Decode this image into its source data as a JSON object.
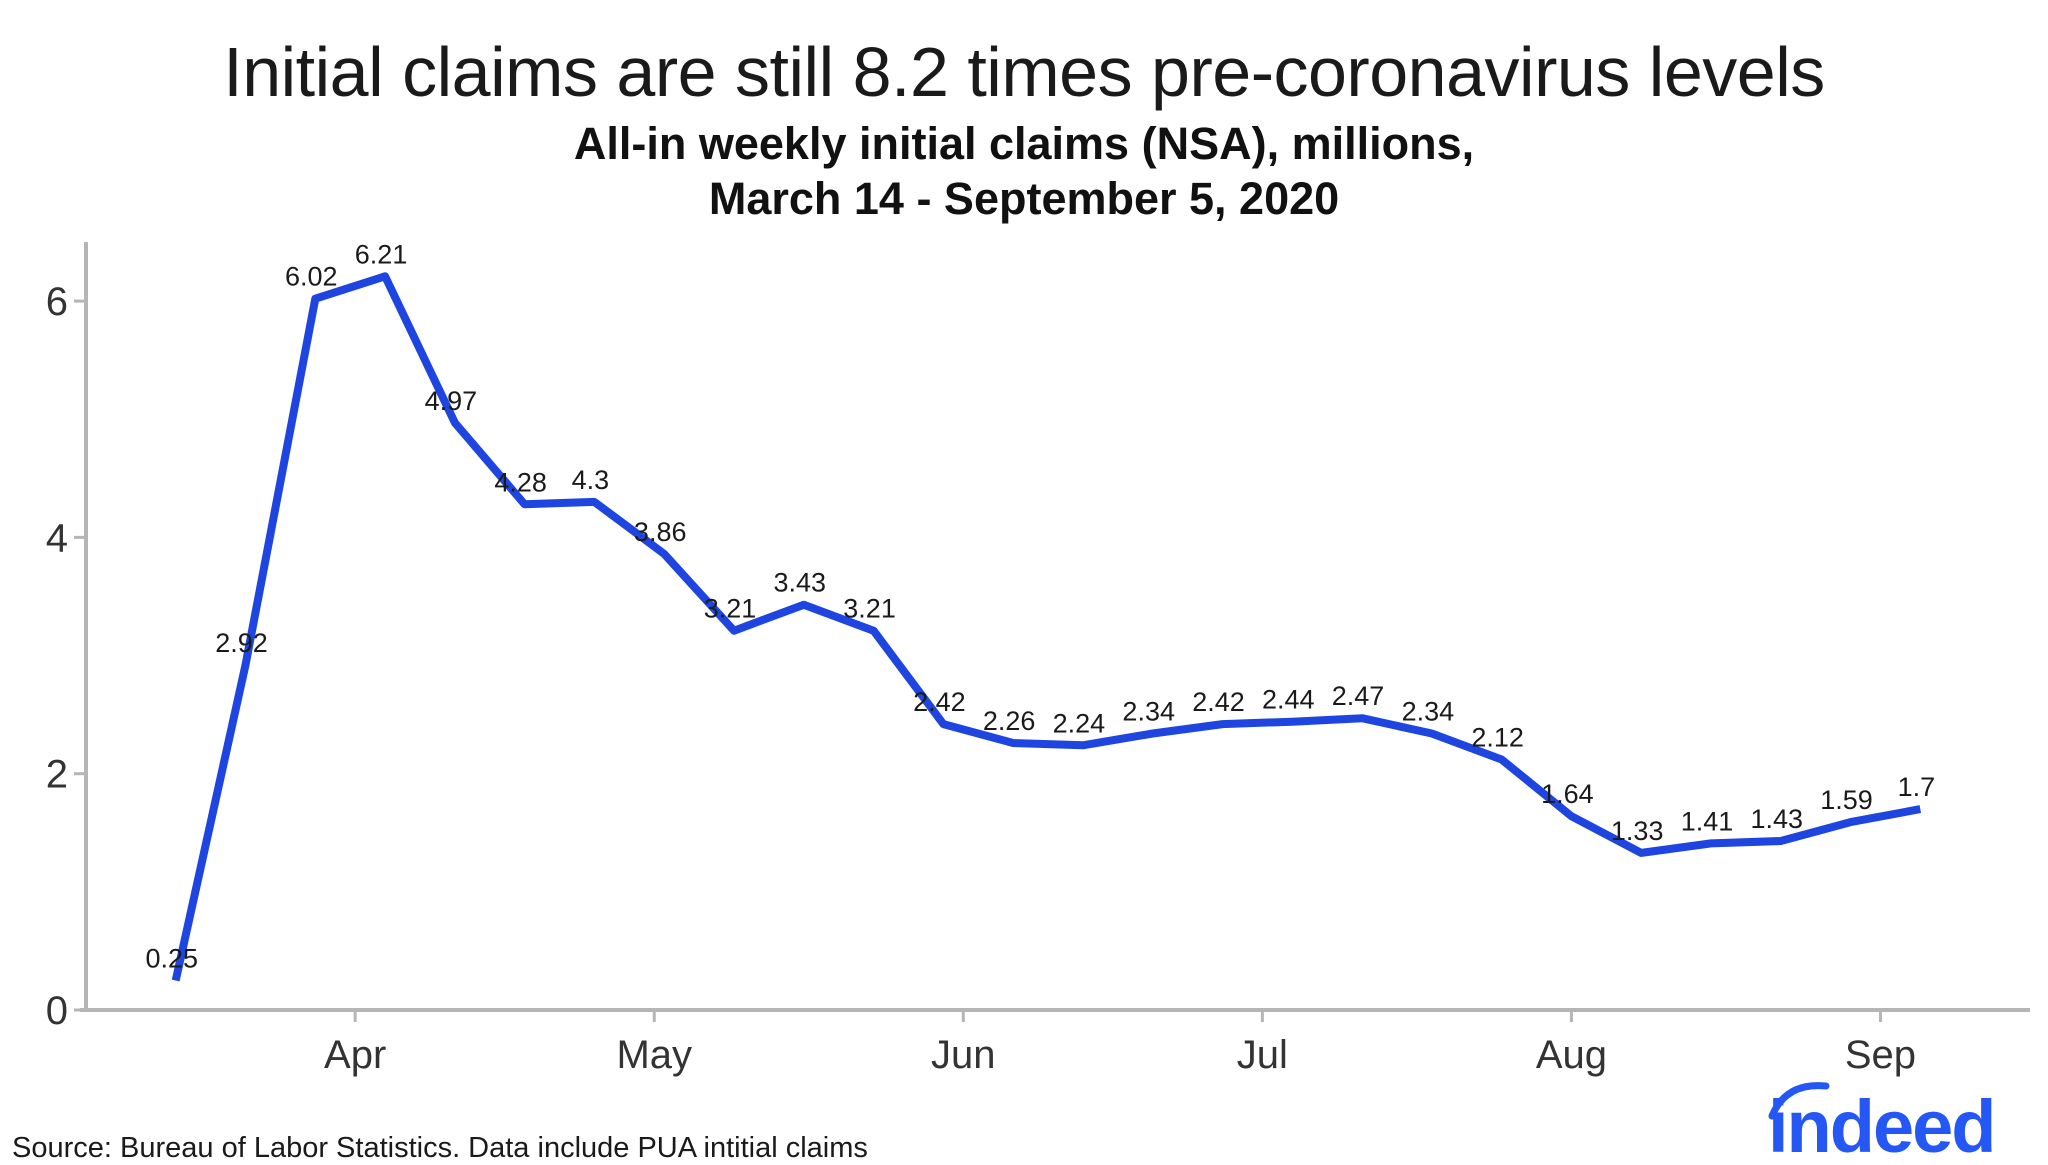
{
  "header": {
    "title": "Initial claims are still 8.2 times pre-coronavirus levels",
    "subtitle_line1": "All-in weekly initial claims (NSA), millions,",
    "subtitle_line2": "March 14 - September 5, 2020"
  },
  "footer": {
    "source": "Source: Bureau of Labor Statistics. Data include PUA intitial claims"
  },
  "logo": {
    "text": "indeed",
    "color": "#2557f5"
  },
  "chart_data": {
    "type": "line",
    "x": [
      "2020-03-14",
      "2020-03-21",
      "2020-03-28",
      "2020-04-04",
      "2020-04-11",
      "2020-04-18",
      "2020-04-25",
      "2020-05-02",
      "2020-05-09",
      "2020-05-16",
      "2020-05-23",
      "2020-05-30",
      "2020-06-06",
      "2020-06-13",
      "2020-06-20",
      "2020-06-27",
      "2020-07-04",
      "2020-07-11",
      "2020-07-18",
      "2020-07-25",
      "2020-08-01",
      "2020-08-08",
      "2020-08-15",
      "2020-08-22",
      "2020-08-29",
      "2020-09-05"
    ],
    "series": [
      {
        "values": [
          0.25,
          2.92,
          6.02,
          6.21,
          4.97,
          4.28,
          4.3,
          3.86,
          3.21,
          3.43,
          3.21,
          2.42,
          2.26,
          2.24,
          2.34,
          2.42,
          2.44,
          2.47,
          2.34,
          2.12,
          1.64,
          1.33,
          1.41,
          1.43,
          1.59,
          1.7
        ],
        "data_labels": [
          "0.25",
          "2.92",
          "6.02",
          "6.21",
          "4.97",
          "4.28",
          "4.3",
          "3.86",
          "3.21",
          "3.43",
          "3.21",
          "2.42",
          "2.26",
          "2.24",
          "2.34",
          "2.42",
          "2.44",
          "2.47",
          "2.34",
          "2.12",
          "1.64",
          "1.33",
          "1.41",
          "1.43",
          "1.59",
          "1.7"
        ],
        "color": "#1f45e0"
      }
    ],
    "x_ticks": [
      {
        "date": "2020-04-01",
        "label": "Apr"
      },
      {
        "date": "2020-05-01",
        "label": "May"
      },
      {
        "date": "2020-06-01",
        "label": "Jun"
      },
      {
        "date": "2020-07-01",
        "label": "Jul"
      },
      {
        "date": "2020-08-01",
        "label": "Aug"
      },
      {
        "date": "2020-09-01",
        "label": "Sep"
      }
    ],
    "y_ticks": [
      {
        "value": 0,
        "label": "0"
      },
      {
        "value": 2,
        "label": "2"
      },
      {
        "value": 4,
        "label": "4"
      },
      {
        "value": 6,
        "label": "6"
      }
    ],
    "xlim": [
      "2020-03-05",
      "2020-09-16"
    ],
    "ylim": [
      0,
      6.5
    ],
    "xlabel": "",
    "ylabel": "",
    "grid": false,
    "legend": "none",
    "axis_color": "#b5b5b5"
  }
}
